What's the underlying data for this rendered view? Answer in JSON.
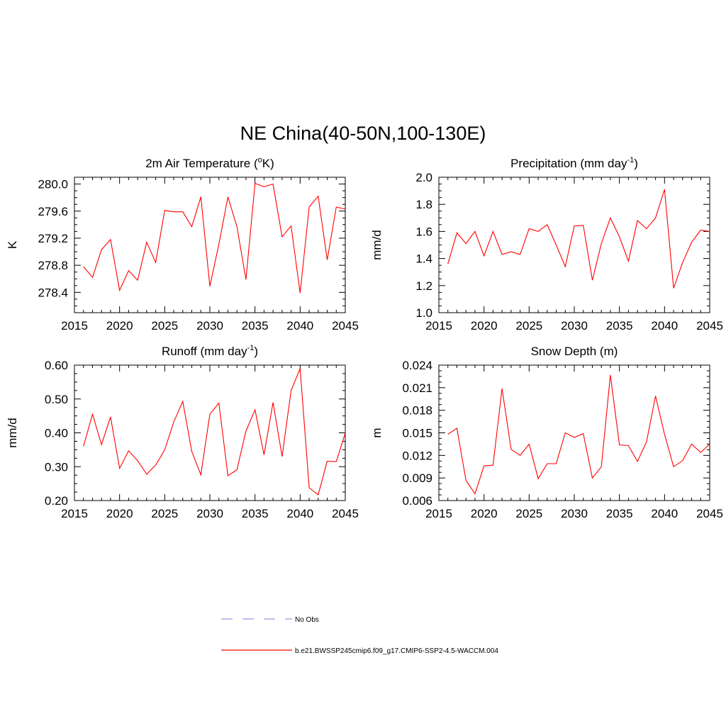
{
  "figure": {
    "title": "NE China(40-50N,100-130E)"
  },
  "legend": {
    "entries": [
      {
        "label": "No Obs",
        "style": "dashed",
        "color": "#9999dd"
      },
      {
        "label": "b.e21.BWSSP245cmip6.f09_g17.CMIP6-SSP2-4.5-WACCM.004",
        "style": "solid",
        "color": "#ff0000"
      }
    ]
  },
  "chart_data": [
    {
      "type": "line",
      "id": "temp",
      "title": "2m Air Temperature (",
      "title_sup": "o",
      "title_tail": "K)",
      "xlabel": "",
      "ylabel": "K",
      "xlim": [
        2015,
        2045
      ],
      "ylim": [
        278.1,
        280.1
      ],
      "xticks": [
        "2015",
        "2020",
        "2025",
        "2030",
        "2035",
        "2040",
        "2045"
      ],
      "yticks": [
        "278.4",
        "278.8",
        "279.2",
        "279.6",
        "280.0"
      ],
      "grid": false,
      "color": "#ff0000",
      "x": [
        2016,
        2017,
        2018,
        2019,
        2020,
        2021,
        2022,
        2023,
        2024,
        2025,
        2026,
        2027,
        2028,
        2029,
        2030,
        2031,
        2032,
        2033,
        2034,
        2035,
        2036,
        2037,
        2038,
        2039,
        2040,
        2041,
        2042,
        2043,
        2044,
        2045
      ],
      "y": [
        278.78,
        278.62,
        279.03,
        279.18,
        278.43,
        278.72,
        278.58,
        279.14,
        278.84,
        279.61,
        279.59,
        279.59,
        279.37,
        279.81,
        278.49,
        279.11,
        279.81,
        279.37,
        278.59,
        280.01,
        279.96,
        280.0,
        279.22,
        279.38,
        278.39,
        279.66,
        279.82,
        278.88,
        279.66,
        279.63
      ]
    },
    {
      "type": "line",
      "id": "precip",
      "title": "Precipitation (mm day",
      "title_sup": "-1",
      "title_tail": ")",
      "xlabel": "",
      "ylabel": "mm/d",
      "xlim": [
        2015,
        2045
      ],
      "ylim": [
        1.0,
        2.0
      ],
      "xticks": [
        "2015",
        "2020",
        "2025",
        "2030",
        "2035",
        "2040",
        "2045"
      ],
      "yticks": [
        "1.0",
        "1.2",
        "1.4",
        "1.6",
        "1.8",
        "2.0"
      ],
      "grid": false,
      "color": "#ff0000",
      "x": [
        2016,
        2017,
        2018,
        2019,
        2020,
        2021,
        2022,
        2023,
        2024,
        2025,
        2026,
        2027,
        2028,
        2029,
        2030,
        2031,
        2032,
        2033,
        2034,
        2035,
        2036,
        2037,
        2038,
        2039,
        2040,
        2041,
        2042,
        2043,
        2044,
        2045
      ],
      "y": [
        1.36,
        1.59,
        1.51,
        1.6,
        1.42,
        1.6,
        1.43,
        1.45,
        1.43,
        1.62,
        1.6,
        1.65,
        1.5,
        1.34,
        1.64,
        1.645,
        1.24,
        1.51,
        1.7,
        1.56,
        1.38,
        1.68,
        1.62,
        1.7,
        1.91,
        1.18,
        1.37,
        1.52,
        1.61,
        1.6
      ]
    },
    {
      "type": "line",
      "id": "runoff",
      "title": "Runoff (mm day",
      "title_sup": "-1",
      "title_tail": ")",
      "xlabel": "",
      "ylabel": "mm/d",
      "xlim": [
        2015,
        2045
      ],
      "ylim": [
        0.2,
        0.6
      ],
      "xticks": [
        "2015",
        "2020",
        "2025",
        "2030",
        "2035",
        "2040",
        "2045"
      ],
      "yticks": [
        "0.20",
        "0.30",
        "0.40",
        "0.50",
        "0.60"
      ],
      "grid": false,
      "color": "#ff0000",
      "x": [
        2016,
        2017,
        2018,
        2019,
        2020,
        2021,
        2022,
        2023,
        2024,
        2025,
        2026,
        2027,
        2028,
        2029,
        2030,
        2031,
        2032,
        2033,
        2034,
        2035,
        2036,
        2037,
        2038,
        2039,
        2040,
        2041,
        2042,
        2043,
        2044,
        2045
      ],
      "y": [
        0.36,
        0.455,
        0.365,
        0.447,
        0.295,
        0.347,
        0.318,
        0.278,
        0.305,
        0.35,
        0.432,
        0.493,
        0.345,
        0.276,
        0.455,
        0.488,
        0.273,
        0.291,
        0.405,
        0.468,
        0.335,
        0.49,
        0.33,
        0.525,
        0.59,
        0.238,
        0.217,
        0.316,
        0.315,
        0.4
      ]
    },
    {
      "type": "line",
      "id": "snow",
      "title": "Snow Depth (m)",
      "title_sup": "",
      "title_tail": "",
      "xlabel": "",
      "ylabel": "m",
      "xlim": [
        2015,
        2045
      ],
      "ylim": [
        0.006,
        0.024
      ],
      "xticks": [
        "2015",
        "2020",
        "2025",
        "2030",
        "2035",
        "2040",
        "2045"
      ],
      "yticks": [
        "0.006",
        "0.009",
        "0.012",
        "0.015",
        "0.018",
        "0.021",
        "0.024"
      ],
      "grid": false,
      "color": "#ff0000",
      "x": [
        2016,
        2017,
        2018,
        2019,
        2020,
        2021,
        2022,
        2023,
        2024,
        2025,
        2026,
        2027,
        2028,
        2029,
        2030,
        2031,
        2032,
        2033,
        2034,
        2035,
        2036,
        2037,
        2038,
        2039,
        2040,
        2041,
        2042,
        2043,
        2044,
        2045
      ],
      "y": [
        0.0148,
        0.0156,
        0.0087,
        0.0069,
        0.0106,
        0.0107,
        0.0209,
        0.0128,
        0.012,
        0.0135,
        0.0089,
        0.0109,
        0.0109,
        0.015,
        0.0144,
        0.0149,
        0.009,
        0.0105,
        0.0227,
        0.0134,
        0.0133,
        0.0112,
        0.0138,
        0.0199,
        0.0148,
        0.0105,
        0.0113,
        0.0135,
        0.0124,
        0.0135
      ]
    }
  ]
}
